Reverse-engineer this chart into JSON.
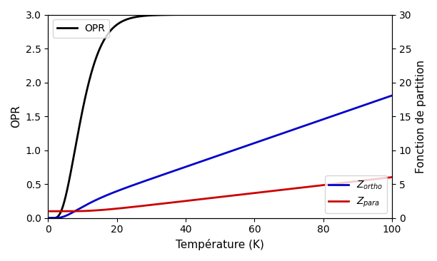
{
  "title": "",
  "xlabel": "Température (K)",
  "ylabel_left": "OPR",
  "ylabel_right": "Fonction de partition",
  "xlim": [
    0,
    100
  ],
  "ylim_left": [
    0,
    3.0
  ],
  "ylim_right": [
    0,
    30
  ],
  "opr_color": "#000000",
  "z_ortho_color": "#0000cc",
  "z_para_color": "#cc0000",
  "theta_rot": 8.54,
  "legend_opr": "OPR",
  "figsize": [
    6.12,
    3.66
  ],
  "dpi": 100,
  "linewidth": 2.0
}
